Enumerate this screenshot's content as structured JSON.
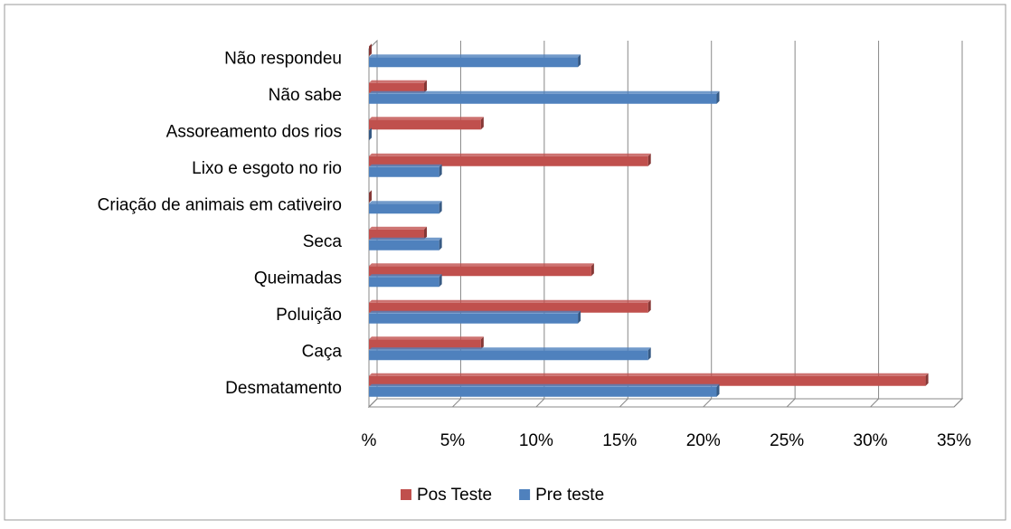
{
  "chart_data": {
    "type": "bar",
    "orientation": "horizontal",
    "categories": [
      "Desmatamento",
      "Caça",
      "Poluição",
      "Queimadas",
      "Seca",
      "Criação de animais em cativeiro",
      "Lixo e esgoto no rio",
      "Assoreamento dos rios",
      "Não sabe",
      "Não respondeu"
    ],
    "series": [
      {
        "name": "Pos Teste",
        "color": "#c0504d",
        "values": [
          33.3,
          6.7,
          16.7,
          13.3,
          3.3,
          0,
          16.7,
          6.7,
          3.3,
          0
        ]
      },
      {
        "name": "Pre teste",
        "color": "#4f81bd",
        "values": [
          20.8,
          16.7,
          12.5,
          4.2,
          4.2,
          4.2,
          4.2,
          0,
          20.8,
          12.5
        ]
      }
    ],
    "xlim": [
      0,
      35
    ],
    "xticks": [
      {
        "value": 0,
        "label": "%"
      },
      {
        "value": 5,
        "label": "5%"
      },
      {
        "value": 10,
        "label": "10%"
      },
      {
        "value": 15,
        "label": "15%"
      },
      {
        "value": 20,
        "label": "20%"
      },
      {
        "value": 25,
        "label": "25%"
      },
      {
        "value": 30,
        "label": "30%"
      },
      {
        "value": 35,
        "label": "35%"
      }
    ],
    "grid": true,
    "legend": "bottom"
  }
}
